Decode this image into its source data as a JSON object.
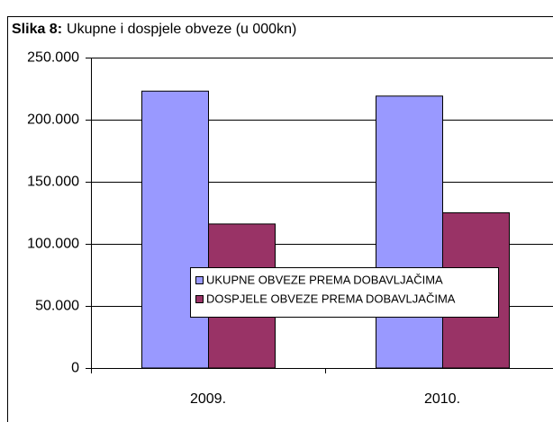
{
  "chart_data": {
    "type": "bar",
    "figure_label": "Slika 8:",
    "title": "Ukupne i dospjele obveze (u 000kn)",
    "categories": [
      "2009.",
      "2010."
    ],
    "series": [
      {
        "name": "UKUPNE OBVEZE PREMA DOBAVLJAČIMA",
        "color": "#9999ff",
        "values": [
          223000,
          219000
        ]
      },
      {
        "name": "DOSPJELE OBVEZE PREMA DOBAVLJAČIMA",
        "color": "#993366",
        "values": [
          116000,
          125000
        ]
      }
    ],
    "ylim": [
      0,
      250000
    ],
    "yticks": [
      0,
      {
        "value": 50000,
        "label": "50.000"
      },
      {
        "value": 100000,
        "label": "100.000"
      },
      {
        "value": 150000,
        "label": "150.000"
      },
      {
        "value": 200000,
        "label": "200.000"
      },
      {
        "value": 250000,
        "label": "250.000"
      }
    ],
    "grid": true
  }
}
